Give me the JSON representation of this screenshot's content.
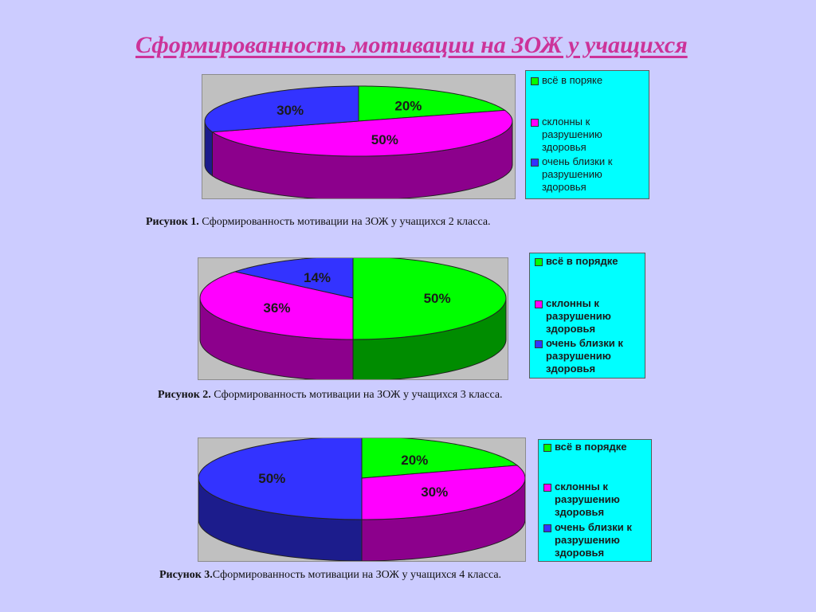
{
  "slide": {
    "title": "Сформированность мотивации на ЗОЖ у учащихся"
  },
  "chart_data": [
    {
      "type": "pie",
      "title": "",
      "categories": [
        "всё в поряке",
        "склонны к разрушению здоровья",
        "очень близки к разрушению здоровья"
      ],
      "values": [
        20,
        50,
        30
      ],
      "value_labels": [
        "20%",
        "50%",
        "30%"
      ],
      "colors": [
        "#00ff00",
        "#ff00ff",
        "#3333ff"
      ],
      "caption_bold": "Рисунок 1.",
      "caption_text": " Сформированность  мотивации  на  ЗОЖ у учащихся  2 класса."
    },
    {
      "type": "pie",
      "title": "",
      "categories": [
        "всё в порядке",
        "склонны к разрушению здоровья",
        "очень близки к разрушению здоровья"
      ],
      "values": [
        50,
        36,
        14
      ],
      "value_labels": [
        "50%",
        "36%",
        "14%"
      ],
      "colors": [
        "#00ff00",
        "#ff00ff",
        "#3333ff"
      ],
      "caption_bold": "Рисунок 2.",
      "caption_text": " Сформированность  мотивации  на  ЗОЖ у учащихся  3 класса."
    },
    {
      "type": "pie",
      "title": "",
      "categories": [
        "всё в порядке",
        "склонны к разрушению здоровья",
        "очень близки к разрушению здоровья"
      ],
      "values": [
        20,
        30,
        50
      ],
      "value_labels": [
        "20%",
        "30%",
        "50%"
      ],
      "colors": [
        "#00ff00",
        "#ff00ff",
        "#3333ff"
      ],
      "caption_bold": "Рисунок 3.",
      "caption_text": "Сформированность  мотивации  на  ЗОЖ у учащихся 4 класса."
    }
  ]
}
